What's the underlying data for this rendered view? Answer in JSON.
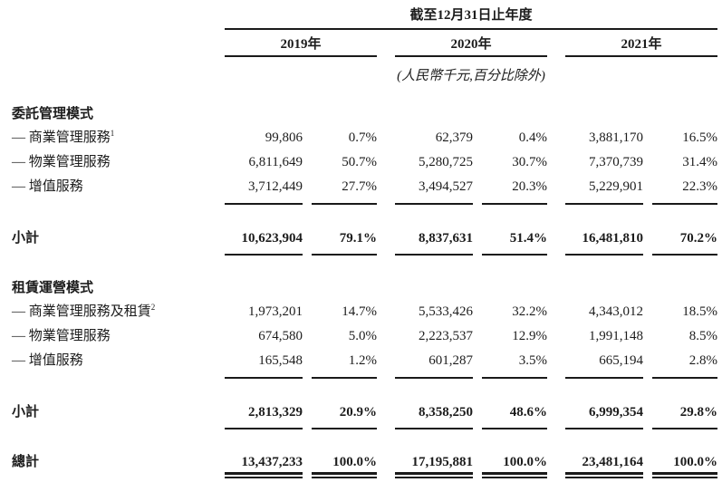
{
  "header": {
    "period_title": "截至12月31日止年度",
    "years": [
      "2019年",
      "2020年",
      "2021年"
    ],
    "unit_note": "(人民幣千元,百分比除外)"
  },
  "sections": [
    {
      "title": "委託管理模式",
      "rows": [
        {
          "label": "— 商業管理服務",
          "sup": "1",
          "values": [
            "99,806",
            "0.7%",
            "62,379",
            "0.4%",
            "3,881,170",
            "16.5%"
          ]
        },
        {
          "label": "— 物業管理服務",
          "sup": "",
          "values": [
            "6,811,649",
            "50.7%",
            "5,280,725",
            "30.7%",
            "7,370,739",
            "31.4%"
          ]
        },
        {
          "label": "— 增值服務",
          "sup": "",
          "values": [
            "3,712,449",
            "27.7%",
            "3,494,527",
            "20.3%",
            "5,229,901",
            "22.3%"
          ]
        }
      ],
      "subtotal": {
        "label": "小計",
        "values": [
          "10,623,904",
          "79.1%",
          "8,837,631",
          "51.4%",
          "16,481,810",
          "70.2%"
        ]
      }
    },
    {
      "title": "租賃運營模式",
      "rows": [
        {
          "label": "— 商業管理服務及租賃",
          "sup": "2",
          "values": [
            "1,973,201",
            "14.7%",
            "5,533,426",
            "32.2%",
            "4,343,012",
            "18.5%"
          ]
        },
        {
          "label": "— 物業管理服務",
          "sup": "",
          "values": [
            "674,580",
            "5.0%",
            "2,223,537",
            "12.9%",
            "1,991,148",
            "8.5%"
          ]
        },
        {
          "label": "— 增值服務",
          "sup": "",
          "values": [
            "165,548",
            "1.2%",
            "601,287",
            "3.5%",
            "665,194",
            "2.8%"
          ]
        }
      ],
      "subtotal": {
        "label": "小計",
        "values": [
          "2,813,329",
          "20.9%",
          "8,358,250",
          "48.6%",
          "6,999,354",
          "29.8%"
        ]
      }
    }
  ],
  "total": {
    "label": "總計",
    "values": [
      "13,437,233",
      "100.0%",
      "17,195,881",
      "100.0%",
      "23,481,164",
      "100.0%"
    ]
  }
}
